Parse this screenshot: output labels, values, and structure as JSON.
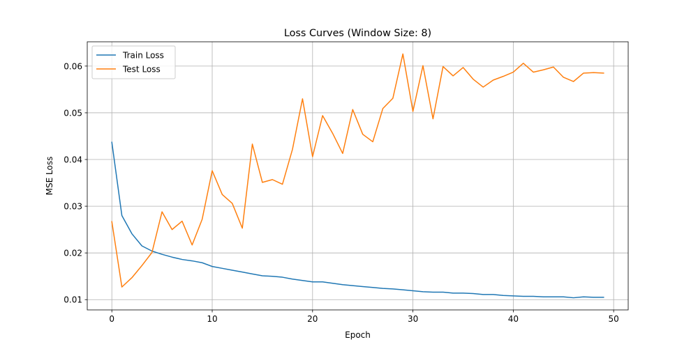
{
  "chart_data": {
    "type": "line",
    "title": "Loss Curves (Window Size: 8)",
    "xlabel": "Epoch",
    "ylabel": "MSE Loss",
    "xlim": [
      -2.45,
      51.45
    ],
    "ylim": [
      0.0078,
      0.0652
    ],
    "xticks": [
      0,
      10,
      20,
      30,
      40,
      50
    ],
    "yticks": [
      0.01,
      0.02,
      0.03,
      0.04,
      0.05,
      0.06
    ],
    "xtick_labels": [
      "0",
      "10",
      "20",
      "30",
      "40",
      "50"
    ],
    "ytick_labels": [
      "0.01",
      "0.02",
      "0.03",
      "0.04",
      "0.05",
      "0.06"
    ],
    "grid": true,
    "legend_placement": "upper-left",
    "x": [
      0,
      1,
      2,
      3,
      4,
      5,
      6,
      7,
      8,
      9,
      10,
      11,
      12,
      13,
      14,
      15,
      16,
      17,
      18,
      19,
      20,
      21,
      22,
      23,
      24,
      25,
      26,
      27,
      28,
      29,
      30,
      31,
      32,
      33,
      34,
      35,
      36,
      37,
      38,
      39,
      40,
      41,
      42,
      43,
      44,
      45,
      46,
      47,
      48,
      49
    ],
    "series": [
      {
        "name": "Train Loss",
        "color": "#1f77b4",
        "values": [
          0.0437,
          0.028,
          0.0241,
          0.0215,
          0.0204,
          0.0197,
          0.0191,
          0.0186,
          0.0183,
          0.0179,
          0.0171,
          0.0167,
          0.0163,
          0.0159,
          0.0155,
          0.0151,
          0.015,
          0.0148,
          0.0144,
          0.0141,
          0.0138,
          0.0138,
          0.0135,
          0.0132,
          0.013,
          0.0128,
          0.0126,
          0.0124,
          0.0123,
          0.0121,
          0.0119,
          0.0117,
          0.0116,
          0.0116,
          0.0114,
          0.0114,
          0.0113,
          0.0111,
          0.0111,
          0.0109,
          0.0108,
          0.0107,
          0.0107,
          0.0106,
          0.0106,
          0.0106,
          0.0104,
          0.0106,
          0.0105,
          0.0105
        ]
      },
      {
        "name": "Test Loss",
        "color": "#ff7f0e",
        "values": [
          0.0267,
          0.0127,
          0.0147,
          0.0173,
          0.0201,
          0.0288,
          0.025,
          0.0268,
          0.0217,
          0.0272,
          0.0376,
          0.0325,
          0.0306,
          0.0253,
          0.0433,
          0.0351,
          0.0357,
          0.0347,
          0.0422,
          0.053,
          0.0406,
          0.0494,
          0.0456,
          0.0413,
          0.0507,
          0.0454,
          0.0438,
          0.0509,
          0.0531,
          0.0626,
          0.0503,
          0.0601,
          0.0487,
          0.0599,
          0.0579,
          0.0597,
          0.0572,
          0.0555,
          0.057,
          0.0578,
          0.0587,
          0.0606,
          0.0587,
          0.0592,
          0.0598,
          0.0576,
          0.0567,
          0.0585,
          0.0586,
          0.0585
        ]
      }
    ]
  }
}
